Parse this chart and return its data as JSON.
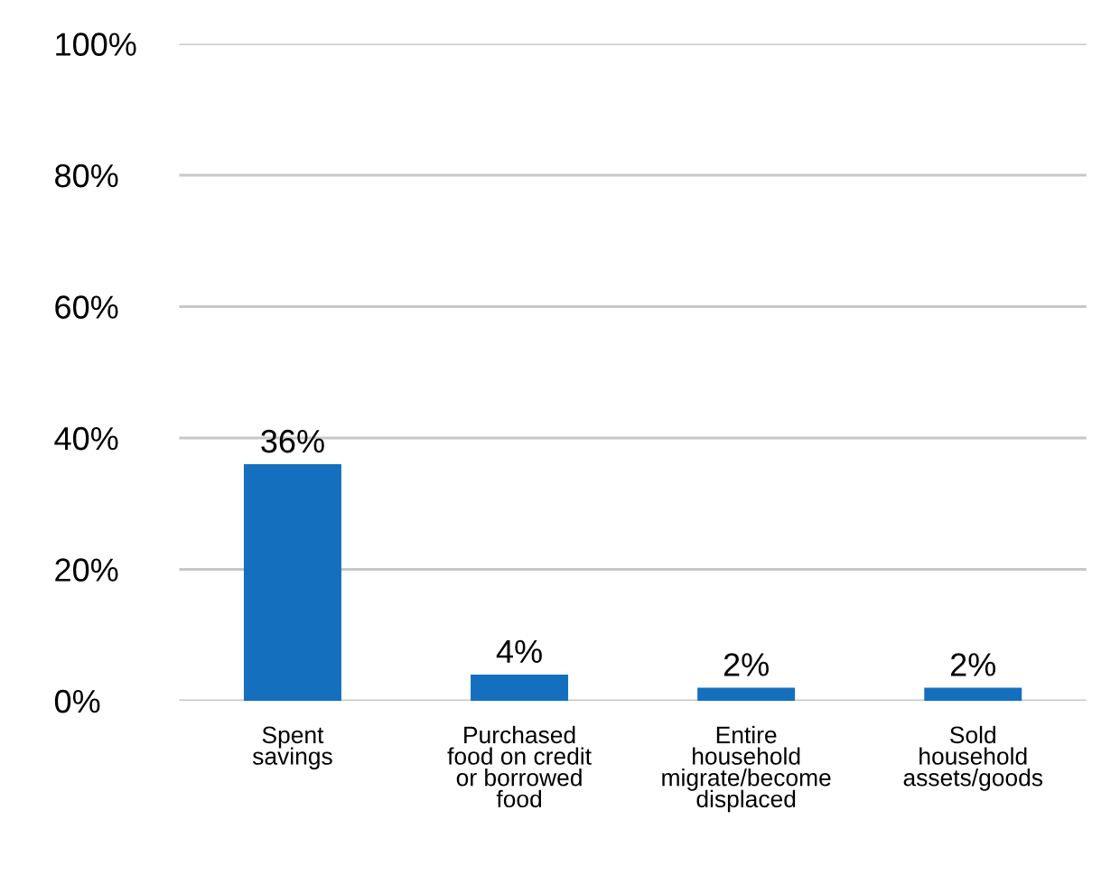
{
  "chart_data": {
    "type": "bar",
    "categories": [
      "Spent\nsavings",
      "Purchased\nfood on credit\nor borrowed\nfood",
      "Entire\nhousehold\nmigrate/become\ndisplaced",
      "Sold\nhousehold\nassets/goods"
    ],
    "values": [
      36,
      4,
      2,
      2
    ],
    "color": "#1470be",
    "value_labels": [
      "36%",
      "4%",
      "2%",
      "2%"
    ],
    "ylim": [
      0,
      100
    ],
    "yticks": [
      {
        "value": 0,
        "label": "0%"
      },
      {
        "value": 20,
        "label": "20%"
      },
      {
        "value": 40,
        "label": "40%"
      },
      {
        "value": 60,
        "label": "60%"
      },
      {
        "value": 80,
        "label": "80%"
      },
      {
        "value": 100,
        "label": "100%"
      }
    ],
    "grid": "y",
    "legend": false
  }
}
